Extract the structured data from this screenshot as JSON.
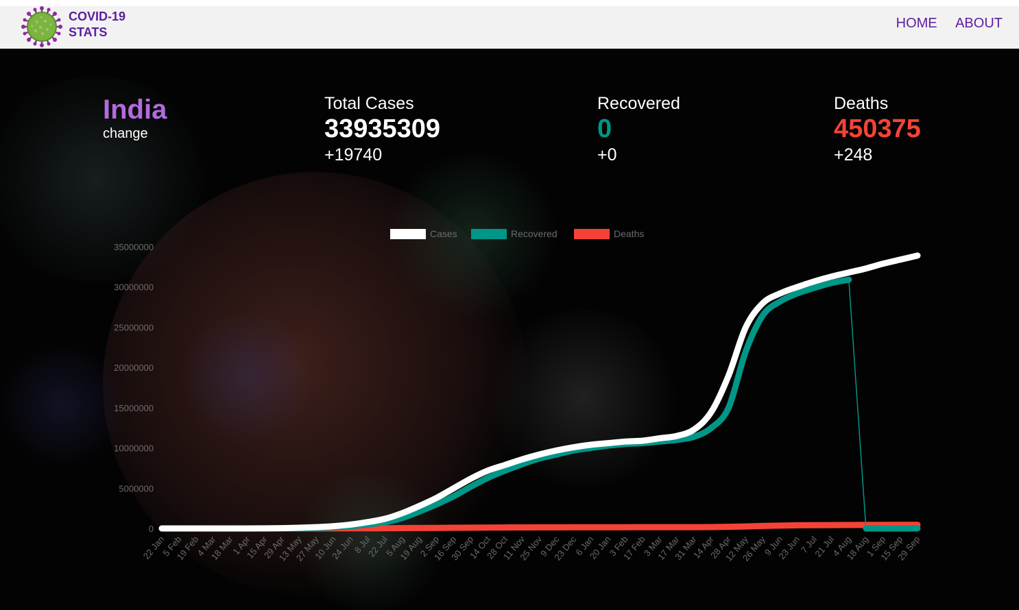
{
  "brand": {
    "line1": "COVID-19",
    "line2": "STATS"
  },
  "nav": {
    "home": "HOME",
    "about": "ABOUT"
  },
  "country": {
    "name": "India",
    "change": "change"
  },
  "stats": {
    "total": {
      "label": "Total Cases",
      "value": "33935309",
      "delta": "+19740",
      "color": "#ffffff"
    },
    "recovered": {
      "label": "Recovered",
      "value": "0",
      "delta": "+0",
      "color": "#009688"
    },
    "deaths": {
      "label": "Deaths",
      "value": "450375",
      "delta": "+248",
      "color": "#f44336"
    }
  },
  "colors": {
    "accent": "#5b1e9e",
    "country": "#b36bdf",
    "cases": "#ffffff",
    "recovered": "#009688",
    "deaths": "#f44336"
  },
  "chart_data": {
    "type": "line",
    "categories": [
      "22 Jan",
      "5 Feb",
      "19 Feb",
      "4 Mar",
      "18 Mar",
      "1 Apr",
      "15 Apr",
      "29 Apr",
      "13 May",
      "27 May",
      "10 Jun",
      "24 Jun",
      "8 Jul",
      "22 Jul",
      "5 Aug",
      "19 Aug",
      "2 Sep",
      "16 Sep",
      "30 Sep",
      "14 Oct",
      "28 Oct",
      "11 Nov",
      "25 Nov",
      "9 Dec",
      "23 Dec",
      "6 Jan",
      "20 Jan",
      "3 Feb",
      "17 Feb",
      "3 Mar",
      "17 Mar",
      "31 Mar",
      "14 Apr",
      "28 Apr",
      "12 May",
      "26 May",
      "9 Jun",
      "23 Jun",
      "7 Jul",
      "21 Jul",
      "4 Aug",
      "18 Aug",
      "1 Sep",
      "15 Sep",
      "29 Sep"
    ],
    "series": [
      {
        "name": "Cases",
        "color": "#ffffff",
        "values": [
          0,
          0,
          0,
          30,
          150,
          2000,
          12000,
          35000,
          80000,
          160000,
          280000,
          480000,
          790000,
          1200000,
          1900000,
          2800000,
          3800000,
          5000000,
          6200000,
          7200000,
          7900000,
          8600000,
          9200000,
          9700000,
          10100000,
          10400000,
          10600000,
          10800000,
          10900000,
          11200000,
          11500000,
          12300000,
          14500000,
          19000000,
          25000000,
          28000000,
          29200000,
          30000000,
          30700000,
          31300000,
          31800000,
          32300000,
          32900000,
          33400000,
          33900000
        ]
      },
      {
        "name": "Recovered",
        "color": "#009688",
        "values": [
          0,
          0,
          0,
          0,
          10,
          150,
          1500,
          9000,
          25000,
          70000,
          150000,
          280000,
          500000,
          780000,
          1300000,
          2100000,
          3000000,
          4000000,
          5200000,
          6300000,
          7200000,
          8000000,
          8700000,
          9200000,
          9700000,
          10000000,
          10300000,
          10500000,
          10600000,
          10800000,
          11000000,
          11400000,
          12500000,
          15000000,
          22000000,
          26500000,
          28200000,
          29200000,
          29900000,
          30500000,
          30900000,
          0,
          0,
          0,
          0
        ]
      },
      {
        "name": "Deaths",
        "color": "#f44336",
        "values": [
          0,
          0,
          0,
          0,
          3,
          50,
          400,
          1000,
          2500,
          5000,
          9000,
          16000,
          21000,
          30000,
          40000,
          54000,
          66000,
          83000,
          98000,
          110000,
          120000,
          128000,
          135000,
          141000,
          146000,
          150000,
          152000,
          154000,
          156000,
          157000,
          159000,
          162000,
          174000,
          205000,
          250000,
          310000,
          350000,
          390000,
          405000,
          420000,
          428000,
          435000,
          440000,
          445000,
          450000
        ]
      }
    ],
    "ylim": [
      0,
      35000000
    ],
    "yticks": [
      0,
      5000000,
      10000000,
      15000000,
      20000000,
      25000000,
      30000000,
      35000000
    ],
    "legend": "top",
    "grid": false
  }
}
